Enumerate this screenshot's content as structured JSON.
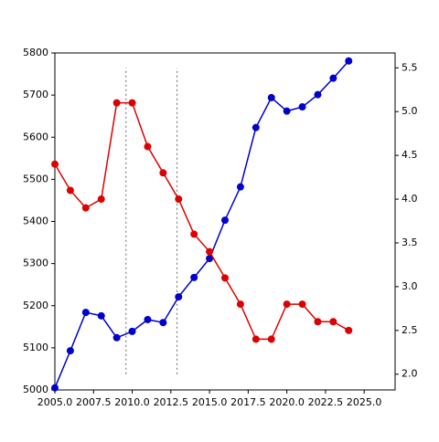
{
  "chart_data": {
    "type": "line",
    "x": [
      2005,
      2006,
      2007,
      2008,
      2009,
      2010,
      2011,
      2012,
      2013,
      2014,
      2015,
      2016,
      2017,
      2018,
      2019,
      2020,
      2021,
      2022,
      2023,
      2024
    ],
    "series": [
      {
        "color": "#0000cc",
        "values": [
          5005,
          5093,
          5184,
          5176,
          5124,
          5139,
          5167,
          5160,
          5221,
          5267,
          5312,
          5403,
          5482,
          5623,
          5694,
          5662,
          5672,
          5701,
          5740,
          5781
        ]
      },
      {
        "color": "#dd0000",
        "axis": "y2",
        "values": [
          4.4,
          4.1,
          3.9,
          4.0,
          5.1,
          5.1,
          4.6,
          4.3,
          4.0,
          3.6,
          3.4,
          3.1,
          2.8,
          2.4,
          2.4,
          2.8,
          2.8,
          2.6,
          2.6,
          2.5
        ]
      }
    ],
    "xlim": [
      2005,
      2027
    ],
    "xticks": [
      {
        "value": 2005,
        "label": "2005.0"
      },
      2007.5,
      {
        "value": 2010,
        "label": "2010.0"
      },
      2012.5,
      {
        "value": 2015,
        "label": "2015.0"
      },
      2017.5,
      {
        "value": 2020,
        "label": "2020.0"
      },
      2022.5,
      {
        "value": 2025,
        "label": "2025.0"
      }
    ],
    "ylim": [
      5000,
      5800
    ],
    "yticks": [
      5000,
      5100,
      5200,
      5300,
      5400,
      5500,
      5600,
      5700,
      5800
    ],
    "y2lim": [
      1.82,
      5.67
    ],
    "y2ticks": [
      {
        "value": 2,
        "label": "2.0"
      },
      2.5,
      {
        "value": 3,
        "label": "3.0"
      },
      3.5,
      {
        "value": 4,
        "label": "4.0"
      },
      4.5,
      {
        "value": 5,
        "label": "5.0"
      },
      5.5
    ],
    "vlines": [
      2009.6,
      2012.9
    ],
    "vline_range": [
      2.0,
      5.5
    ]
  }
}
